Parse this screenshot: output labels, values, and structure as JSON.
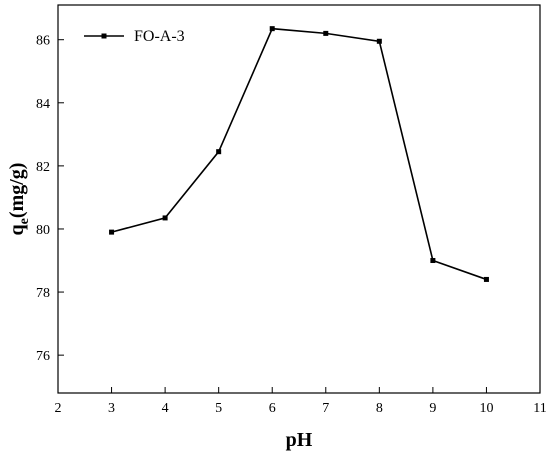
{
  "chart_data": {
    "type": "line",
    "title": "",
    "xlabel": "pH",
    "ylabel_main": "q",
    "ylabel_sub": "e",
    "ylabel_rest": "(mg/g)",
    "xlim": [
      2,
      11
    ],
    "ylim": [
      74.8,
      87.1
    ],
    "xticks": [
      2,
      3,
      4,
      5,
      6,
      7,
      8,
      9,
      10,
      11
    ],
    "yticks": [
      76,
      78,
      80,
      82,
      84,
      86
    ],
    "grid": false,
    "legend_position": "top-left",
    "series": [
      {
        "name": "FO-A-3",
        "color": "#000000",
        "marker": "square",
        "x": [
          3,
          4,
          5,
          6,
          7,
          8,
          9,
          10
        ],
        "y": [
          79.9,
          80.35,
          82.45,
          86.35,
          86.2,
          85.95,
          79.0,
          78.4
        ]
      }
    ]
  }
}
